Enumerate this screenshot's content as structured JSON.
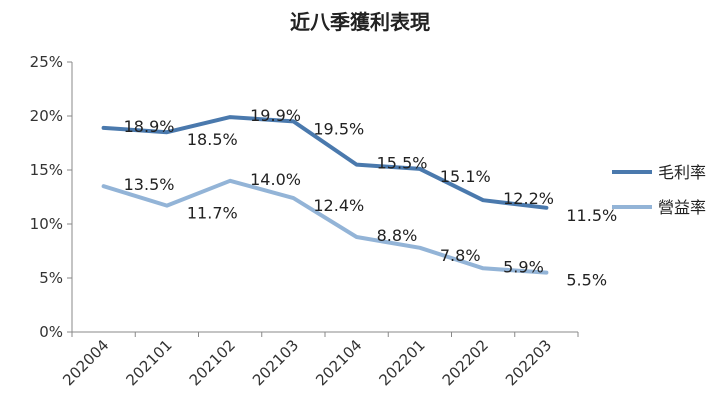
{
  "chart_data": {
    "type": "line",
    "title": "近八季獲利表現",
    "categories": [
      "202004",
      "202101",
      "202102",
      "202103",
      "202104",
      "202201",
      "202202",
      "202203"
    ],
    "ylim": [
      0,
      25
    ],
    "yticks": [
      "0%",
      "5%",
      "10%",
      "15%",
      "20%",
      "25%"
    ],
    "series": [
      {
        "name": "毛利率",
        "color": "#4a79ad",
        "values": [
          18.9,
          18.5,
          19.9,
          19.5,
          15.5,
          15.1,
          12.2,
          11.5
        ],
        "labels": [
          "18.9%",
          "18.5%",
          "19.9%",
          "19.5%",
          "15.5%",
          "15.1%",
          "12.2%",
          "11.5%"
        ]
      },
      {
        "name": "營益率",
        "color": "#93b4d7",
        "values": [
          13.5,
          11.7,
          14.0,
          12.4,
          8.8,
          7.8,
          5.9,
          5.5
        ],
        "labels": [
          "13.5%",
          "11.7%",
          "14.0%",
          "12.4%",
          "8.8%",
          "7.8%",
          "5.9%",
          "5.5%"
        ]
      }
    ],
    "legend": "right",
    "grid": false
  }
}
